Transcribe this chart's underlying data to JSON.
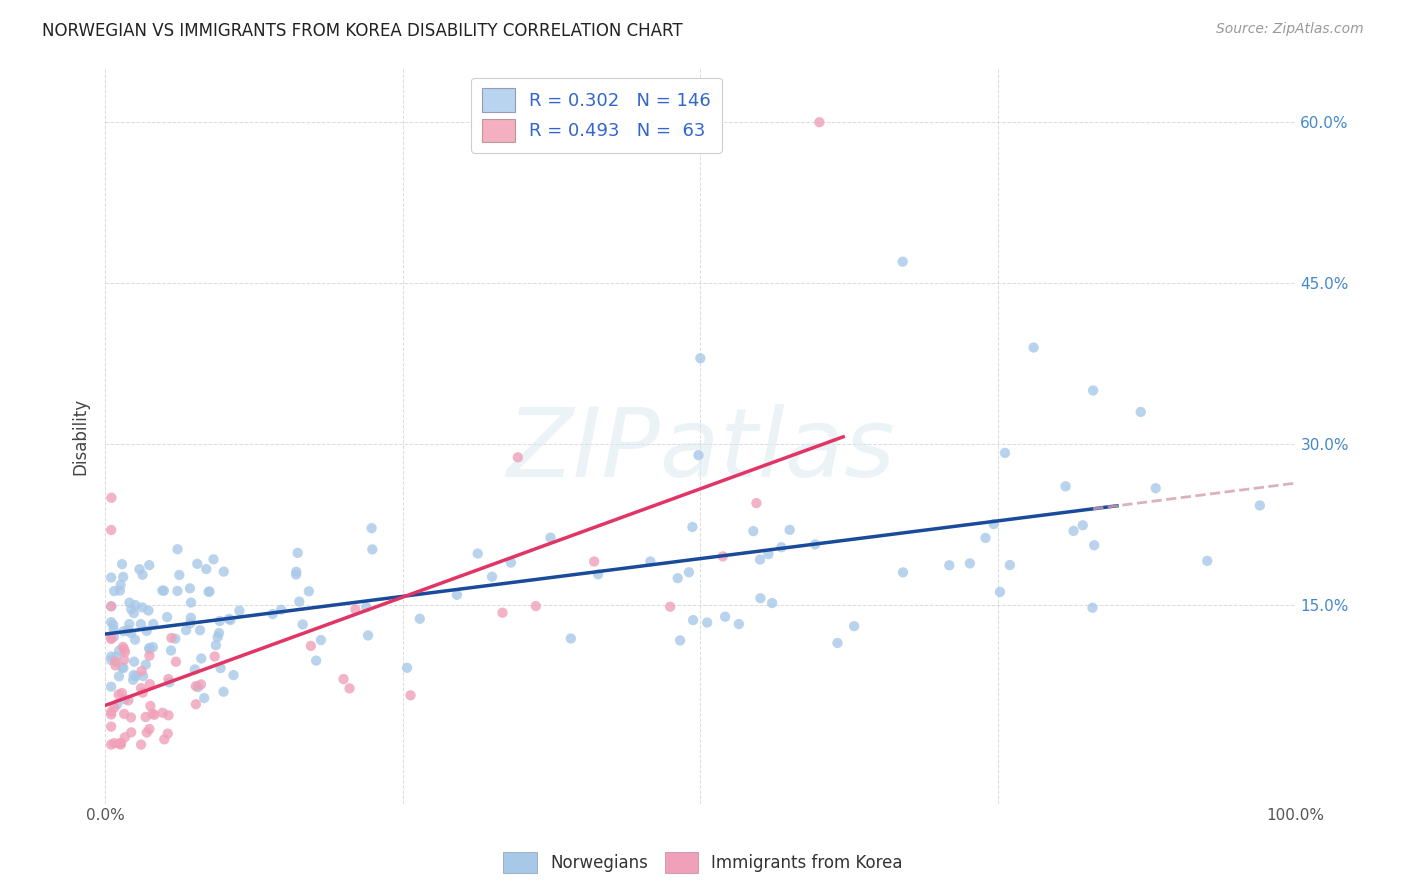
{
  "title": "NORWEGIAN VS IMMIGRANTS FROM KOREA DISABILITY CORRELATION CHART",
  "source": "Source: ZipAtlas.com",
  "ylabel": "Disability",
  "watermark": "ZIPatlas",
  "bg_color": "#ffffff",
  "plot_bg_color": "#ffffff",
  "grid_color": "#cccccc",
  "norwegian_color": "#a8c8e8",
  "korean_color": "#f0a0b8",
  "norwegian_line_color": "#1a4a9a",
  "korean_line_color": "#e03565",
  "norwegian_line_ext_color": "#d0a0a8",
  "legend_box_color_norwegian": "#b8d4ee",
  "legend_box_color_korean": "#f4b0c0",
  "R_norwegian": 0.302,
  "N_norwegian": 146,
  "R_korean": 0.493,
  "N_korean": 63,
  "xmin": 0.0,
  "xmax": 1.0,
  "ymin": -0.035,
  "ymax": 0.65,
  "title_fontsize": 12,
  "source_fontsize": 10,
  "tick_fontsize": 11,
  "legend_fontsize": 13
}
